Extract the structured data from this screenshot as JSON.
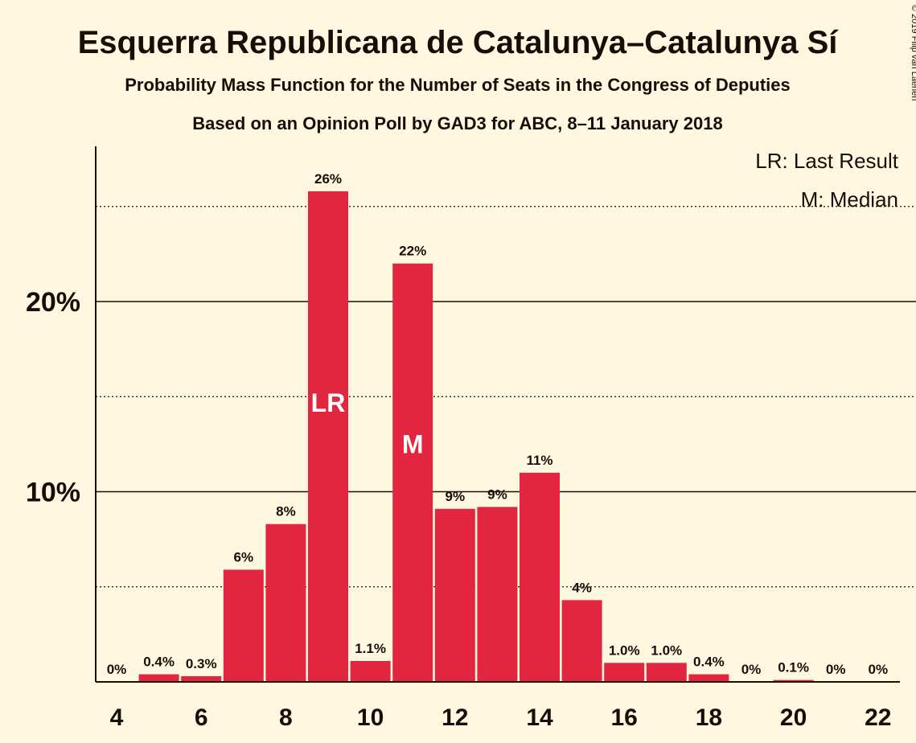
{
  "chart_data": {
    "type": "bar",
    "title": "Esquerra Republicana de Catalunya–Catalunya Sí",
    "subtitle": "Probability Mass Function for the Number of Seats in the Congress of Deputies",
    "subtitle2": "Based on an Opinion Poll by GAD3 for ABC, 8–11 January 2018",
    "copyright": "© 2019 Filip van Laenen",
    "legend": {
      "last_result": "LR: Last Result",
      "median": "M: Median",
      "placement": "top-right"
    },
    "x": [
      4,
      5,
      6,
      7,
      8,
      9,
      10,
      11,
      12,
      13,
      14,
      15,
      16,
      17,
      18,
      19,
      20,
      21,
      22
    ],
    "values": [
      0,
      0.4,
      0.3,
      5.9,
      8.3,
      25.8,
      1.1,
      22.0,
      9.1,
      9.2,
      11.0,
      4.3,
      1.0,
      1.0,
      0.4,
      0,
      0.1,
      0,
      0
    ],
    "labels": [
      "0%",
      "0.4%",
      "0.3%",
      "6%",
      "8%",
      "26%",
      "1.1%",
      "22%",
      "9%",
      "9%",
      "11%",
      "4%",
      "1.0%",
      "1.0%",
      "0.4%",
      "0%",
      "0.1%",
      "0%",
      "0%"
    ],
    "xticks": [
      "4",
      "6",
      "8",
      "10",
      "12",
      "14",
      "16",
      "18",
      "20",
      "22"
    ],
    "ytick_labels": [
      "10%",
      "20%"
    ],
    "ylim": [
      0,
      28
    ],
    "bar_markers": [
      {
        "x": 9,
        "text": "LR"
      },
      {
        "x": 11,
        "text": "M"
      }
    ],
    "grid": true,
    "colors": {
      "bar": "#e3263f",
      "background": "#fff8e1",
      "text": "#1a0d08"
    }
  }
}
